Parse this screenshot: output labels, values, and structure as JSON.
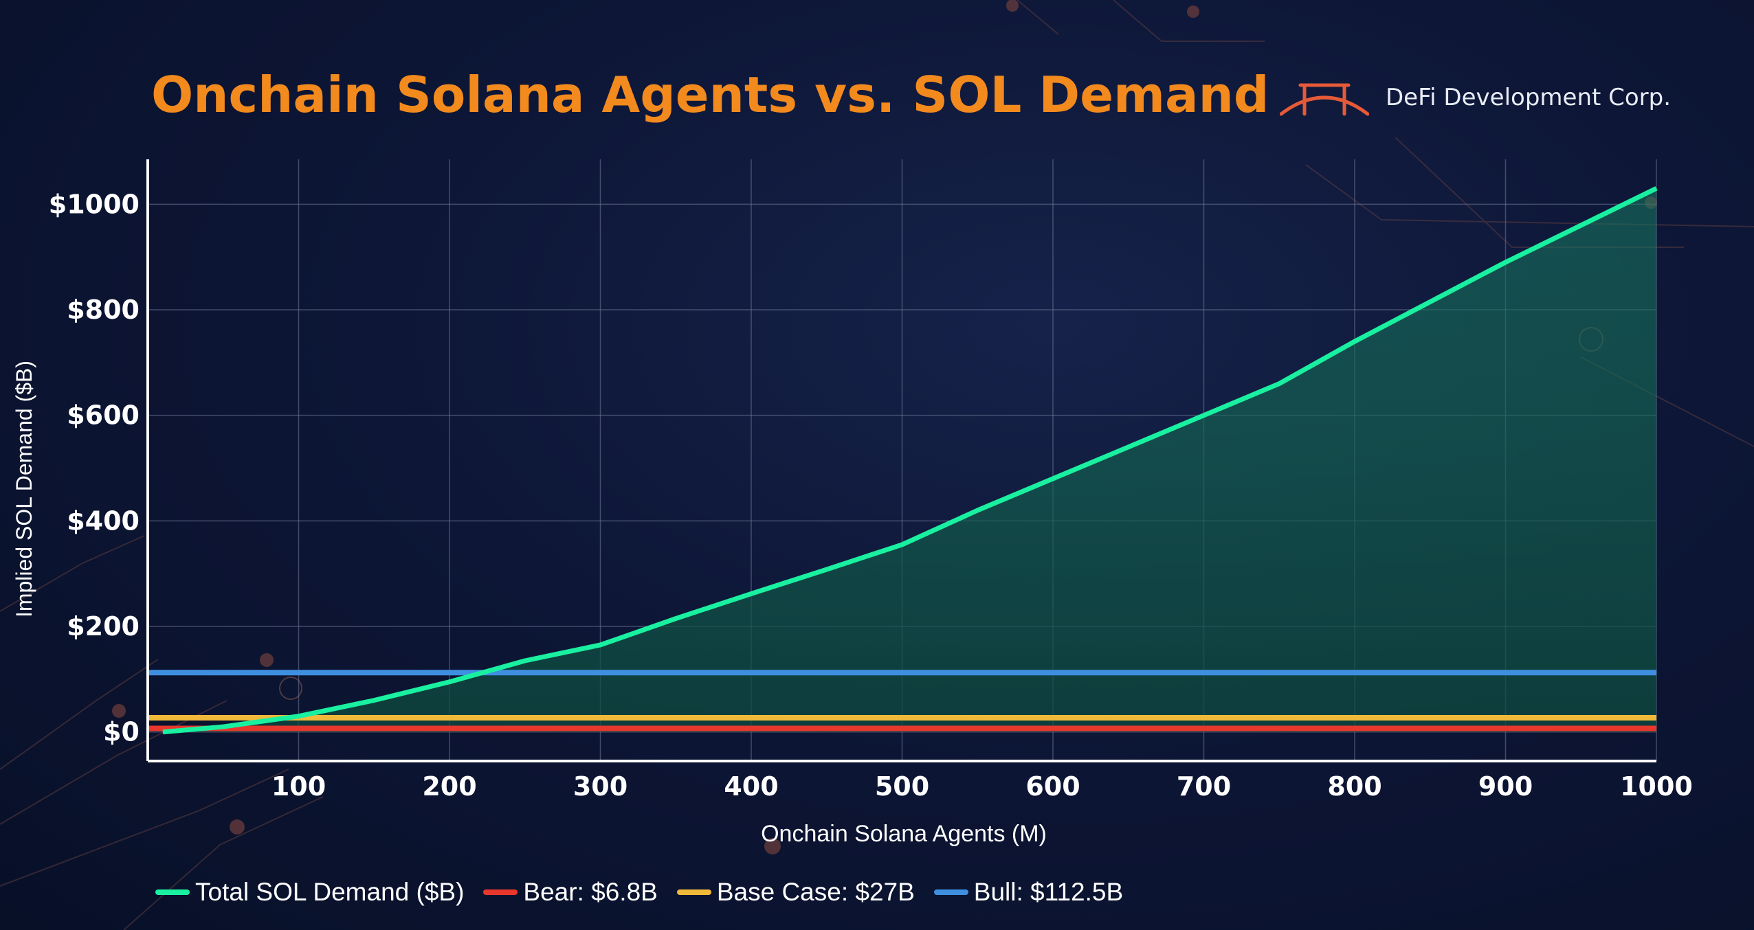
{
  "header": {
    "title": "Onchain Solana Agents vs. SOL Demand",
    "brand": "DeFi Development Corp."
  },
  "colors": {
    "title": "#f28a1e",
    "total": "#19f0a0",
    "bear": "#e8382d",
    "base": "#f0b93a",
    "bull": "#3f8fe0",
    "area": "#0f5a4a"
  },
  "chart_data": {
    "type": "line",
    "title": "Onchain Solana Agents vs. SOL Demand",
    "xlabel": "Onchain Solana Agents (M)",
    "ylabel": "Implied SOL Demand ($B)",
    "xlim": [
      0,
      1000
    ],
    "ylim": [
      -55,
      1085
    ],
    "x_ticks": [
      100,
      200,
      300,
      400,
      500,
      600,
      700,
      800,
      900,
      1000
    ],
    "x_tick_labels": [
      "100",
      "200",
      "300",
      "400",
      "500",
      "600",
      "700",
      "800",
      "900",
      "1000"
    ],
    "y_ticks": [
      0,
      200,
      400,
      600,
      800,
      1000
    ],
    "y_tick_labels": [
      "$0",
      "$200",
      "$400",
      "$600",
      "$800",
      "$1000"
    ],
    "grid": true,
    "legend_position": "bottom-left",
    "series": [
      {
        "name": "Total SOL Demand ($B)",
        "legend": "Total SOL Demand ($B)",
        "color": "#19f0a0",
        "fill": true,
        "x": [
          10,
          50,
          100,
          150,
          200,
          250,
          300,
          350,
          400,
          450,
          500,
          550,
          600,
          650,
          700,
          750,
          800,
          850,
          900,
          950,
          1000
        ],
        "y": [
          0,
          10,
          30,
          60,
          95,
          135,
          165,
          215,
          262,
          308,
          355,
          420,
          480,
          540,
          600,
          660,
          740,
          815,
          890,
          960,
          1030
        ]
      },
      {
        "name": "Bear",
        "legend": "Bear: $6.8B",
        "color": "#e8382d",
        "x": [
          0,
          1000
        ],
        "y": [
          6.8,
          6.8
        ]
      },
      {
        "name": "Base Case",
        "legend": "Base Case: $27B",
        "color": "#f0b93a",
        "x": [
          0,
          1000
        ],
        "y": [
          27,
          27
        ]
      },
      {
        "name": "Bull",
        "legend": "Bull: $112.5B",
        "color": "#3f8fe0",
        "x": [
          0,
          1000
        ],
        "y": [
          112.5,
          112.5
        ]
      }
    ]
  }
}
